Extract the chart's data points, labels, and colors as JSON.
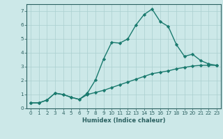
{
  "xlabel": "Humidex (Indice chaleur)",
  "xlim_min": -0.5,
  "xlim_max": 23.5,
  "ylim_min": 0,
  "ylim_max": 7.5,
  "yticks": [
    0,
    1,
    2,
    3,
    4,
    5,
    6,
    7
  ],
  "xticks": [
    0,
    1,
    2,
    3,
    4,
    5,
    6,
    7,
    8,
    9,
    10,
    11,
    12,
    13,
    14,
    15,
    16,
    17,
    18,
    19,
    20,
    21,
    22,
    23
  ],
  "line1_x": [
    0,
    1,
    2,
    3,
    4,
    5,
    6,
    7,
    8,
    9,
    10,
    11,
    12,
    13,
    14,
    15,
    16,
    17,
    18,
    19,
    20,
    21,
    22,
    23
  ],
  "line1_y": [
    0.4,
    0.4,
    0.6,
    1.1,
    1.0,
    0.8,
    0.65,
    1.1,
    2.05,
    3.55,
    4.75,
    4.7,
    5.0,
    6.0,
    6.75,
    7.15,
    6.25,
    5.9,
    4.6,
    3.75,
    3.9,
    3.45,
    3.2,
    3.1
  ],
  "line2_x": [
    0,
    1,
    2,
    3,
    4,
    5,
    6,
    7,
    8,
    9,
    10,
    11,
    12,
    13,
    14,
    15,
    16,
    17,
    18,
    19,
    20,
    21,
    22,
    23
  ],
  "line2_y": [
    0.4,
    0.4,
    0.6,
    1.1,
    1.0,
    0.8,
    0.65,
    1.0,
    1.15,
    1.3,
    1.5,
    1.7,
    1.9,
    2.1,
    2.3,
    2.5,
    2.6,
    2.7,
    2.85,
    2.95,
    3.05,
    3.1,
    3.1,
    3.1
  ],
  "line_color": "#1a7a6e",
  "bg_color": "#cce8e8",
  "grid_color": "#aacfcf",
  "axis_color": "#2a6060",
  "tick_label_color": "#2a6060",
  "marker": "D",
  "marker_size": 2.2,
  "line_width": 1.0,
  "xlabel_fontsize": 6.0,
  "tick_fontsize": 5.2
}
